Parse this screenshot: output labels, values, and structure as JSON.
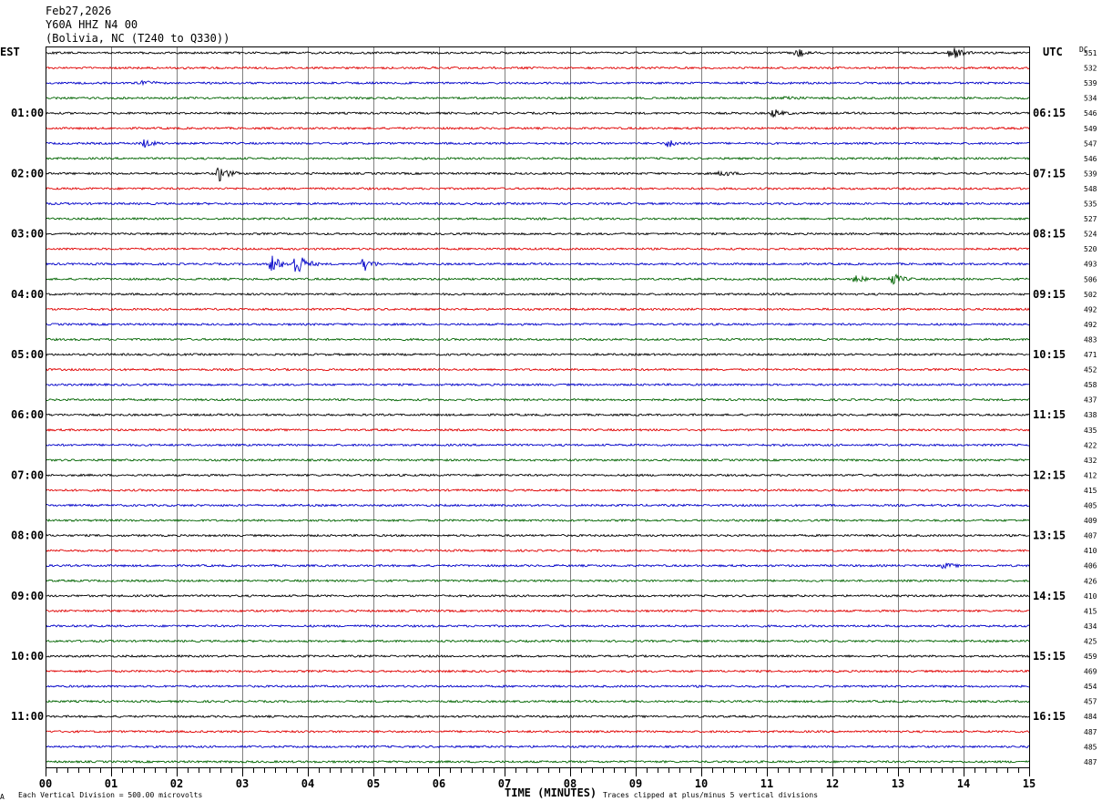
{
  "header": {
    "date": "Feb27,2026",
    "station": "Y60A HHZ N4 00",
    "location": "(Bolivia, NC (T240 to Q330))"
  },
  "labels": {
    "left_zone": "EST",
    "right_zone": "UTC",
    "dc_header": "DC",
    "x_title": "TIME (MINUTES)",
    "vertical_division": "Each Vertical Division =  500.00 microvolts",
    "clip_note": "Traces clipped at plus/minus 5 vertical divisions",
    "corner_mark": "A"
  },
  "colors": {
    "trace_cycle": [
      "#000000",
      "#e00000",
      "#0000c8",
      "#006400"
    ],
    "grid": "#808080",
    "frame": "#000000"
  },
  "chart_data": {
    "type": "line",
    "title": "Y60A HHZ N4 00",
    "xlabel": "TIME (MINUTES)",
    "xlim": [
      0,
      15
    ],
    "x_ticks": [
      "00",
      "01",
      "02",
      "03",
      "04",
      "05",
      "06",
      "07",
      "08",
      "09",
      "10",
      "11",
      "12",
      "13",
      "14",
      "15"
    ],
    "rows_per_hour": 4,
    "row_count": 48,
    "est_hour_labels": [
      "01:00",
      "02:00",
      "03:00",
      "04:00",
      "05:00",
      "06:00",
      "07:00",
      "08:00",
      "09:00",
      "10:00",
      "11:00"
    ],
    "utc_hour_labels": [
      "06:15",
      "07:15",
      "08:15",
      "09:15",
      "10:15",
      "11:15",
      "12:15",
      "13:15",
      "14:15",
      "15:15",
      "16:15"
    ],
    "dc_offsets": [
      551,
      532,
      539,
      534,
      546,
      549,
      547,
      546,
      539,
      548,
      535,
      527,
      524,
      520,
      493,
      506,
      502,
      492,
      492,
      483,
      471,
      452,
      458,
      437,
      438,
      435,
      422,
      432,
      412,
      415,
      405,
      409,
      407,
      410,
      406,
      426,
      410,
      415,
      434,
      425,
      459,
      469,
      454,
      457,
      484,
      487,
      485,
      487
    ],
    "events": [
      {
        "row": 0,
        "minute": 11.45,
        "amplitude": 0.6
      },
      {
        "row": 0,
        "minute": 13.8,
        "amplitude": 1.0
      },
      {
        "row": 2,
        "minute": 1.5,
        "amplitude": 0.4
      },
      {
        "row": 3,
        "minute": 11.3,
        "amplitude": 0.35
      },
      {
        "row": 4,
        "minute": 11.1,
        "amplitude": 0.5
      },
      {
        "row": 6,
        "minute": 1.5,
        "amplitude": 0.5
      },
      {
        "row": 6,
        "minute": 9.5,
        "amplitude": 0.5
      },
      {
        "row": 8,
        "minute": 2.65,
        "amplitude": 1.0
      },
      {
        "row": 8,
        "minute": 10.3,
        "amplitude": 0.4
      },
      {
        "row": 14,
        "minute": 3.45,
        "amplitude": 1.2
      },
      {
        "row": 14,
        "minute": 3.82,
        "amplitude": 1.8
      },
      {
        "row": 14,
        "minute": 4.85,
        "amplitude": 0.9
      },
      {
        "row": 15,
        "minute": 12.35,
        "amplitude": 0.5
      },
      {
        "row": 15,
        "minute": 12.9,
        "amplitude": 0.9
      },
      {
        "row": 34,
        "minute": 13.7,
        "amplitude": 0.35
      }
    ]
  }
}
